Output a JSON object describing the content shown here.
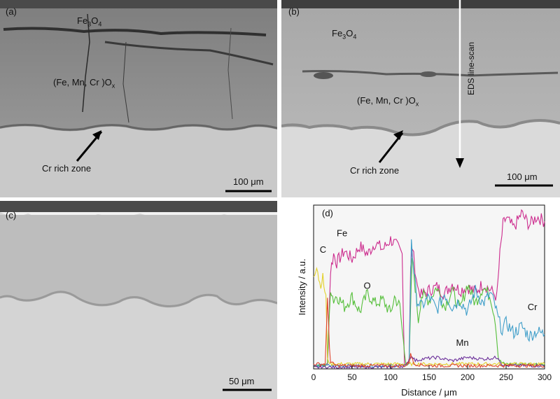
{
  "panels": {
    "a": {
      "label": "(a)",
      "outer_oxide": "Fe",
      "outer_oxide_sub1": "3",
      "outer_oxide_o": "O",
      "outer_oxide_sub2": "4",
      "inner_oxide": "(Fe, Mn, Cr )O",
      "inner_oxide_sub": "x",
      "zone_label": "Cr rich zone",
      "scale_bar": "100 μm"
    },
    "b": {
      "label": "(b)",
      "outer_oxide": "Fe",
      "outer_oxide_sub1": "3",
      "outer_oxide_o": "O",
      "outer_oxide_sub2": "4",
      "inner_oxide": "(Fe, Mn, Cr )O",
      "inner_oxide_sub": "x",
      "zone_label": "Cr rich zone",
      "scan_label": "EDS line-scan",
      "scale_bar": "100 μm"
    },
    "c": {
      "label": "(c)",
      "scale_bar": "50 μm"
    }
  },
  "chart_data": {
    "type": "line",
    "panel_label": "(d)",
    "xlabel": "Distance / μm",
    "ylabel": "Intensity / a.u.",
    "xlim": [
      0,
      300
    ],
    "ylim": [
      0,
      100
    ],
    "xticks": [
      0,
      50,
      100,
      150,
      200,
      250,
      300
    ],
    "colors": {
      "Fe": "#cc2c8e",
      "O": "#55bf3a",
      "Cr": "#3f9ec9",
      "C": "#e3d12a",
      "Mn": "#6b2f9a",
      "extra_red": "#e0452e"
    },
    "series": [
      {
        "name": "Fe",
        "label_at": [
          30,
          81
        ],
        "x": [
          0,
          18,
          22,
          26,
          30,
          40,
          50,
          60,
          70,
          80,
          90,
          100,
          110,
          115,
          118,
          122,
          124,
          126,
          128,
          130,
          135,
          140,
          150,
          160,
          170,
          180,
          190,
          200,
          210,
          220,
          230,
          238,
          242,
          246,
          250,
          260,
          270,
          280,
          290,
          300
        ],
        "y": [
          2,
          2,
          60,
          70,
          65,
          72,
          67,
          75,
          70,
          77,
          73,
          79,
          74,
          70,
          3,
          3,
          4,
          60,
          75,
          68,
          50,
          45,
          48,
          50,
          46,
          52,
          48,
          50,
          47,
          52,
          48,
          44,
          70,
          88,
          92,
          86,
          95,
          88,
          93,
          90
        ]
      },
      {
        "name": "O",
        "label_at": [
          65,
          49
        ],
        "x": [
          0,
          15,
          18,
          22,
          26,
          30,
          40,
          50,
          60,
          70,
          80,
          90,
          100,
          105,
          112,
          118,
          120,
          124,
          128,
          132,
          136,
          140,
          150,
          160,
          170,
          180,
          190,
          200,
          210,
          220,
          230,
          236,
          240,
          244,
          248,
          260,
          280,
          300
        ],
        "y": [
          2,
          2,
          4,
          50,
          42,
          45,
          38,
          44,
          35,
          46,
          40,
          42,
          34,
          44,
          38,
          10,
          3,
          3,
          68,
          50,
          30,
          45,
          42,
          50,
          38,
          48,
          36,
          52,
          40,
          50,
          44,
          30,
          6,
          4,
          3,
          3,
          3,
          3
        ]
      },
      {
        "name": "Cr",
        "label_at": [
          278,
          36
        ],
        "x": [
          0,
          118,
          124,
          127,
          130,
          134,
          140,
          150,
          160,
          170,
          180,
          190,
          200,
          210,
          220,
          230,
          236,
          240,
          245,
          250,
          260,
          270,
          280,
          290,
          300
        ],
        "y": [
          2,
          2,
          4,
          80,
          60,
          42,
          38,
          44,
          36,
          46,
          38,
          42,
          35,
          48,
          40,
          46,
          38,
          30,
          24,
          28,
          22,
          26,
          20,
          23,
          21
        ]
      },
      {
        "name": "C",
        "label_at": [
          8,
          71
        ],
        "x": [
          0,
          4,
          8,
          12,
          16,
          18,
          22,
          30,
          60,
          100,
          150,
          200,
          250,
          300
        ],
        "y": [
          58,
          64,
          52,
          55,
          44,
          6,
          3,
          3,
          3,
          3,
          3,
          3,
          3,
          3
        ]
      },
      {
        "name": "Mn",
        "label_at": [
          185,
          14
        ],
        "x": [
          0,
          100,
          120,
          124,
          128,
          132,
          140,
          160,
          180,
          200,
          220,
          240,
          244,
          250,
          270,
          300
        ],
        "y": [
          1,
          1,
          2,
          6,
          8,
          5,
          6,
          7,
          5,
          7,
          6,
          7,
          3,
          2,
          2,
          2
        ]
      },
      {
        "name": "",
        "x": [
          0,
          15,
          18,
          22,
          30,
          50,
          80,
          110,
          120,
          124,
          126,
          130,
          150,
          200,
          250,
          300
        ],
        "y": [
          3,
          3,
          40,
          4,
          2,
          2,
          2,
          2,
          2,
          4,
          10,
          3,
          2,
          2,
          2,
          2
        ]
      }
    ]
  }
}
